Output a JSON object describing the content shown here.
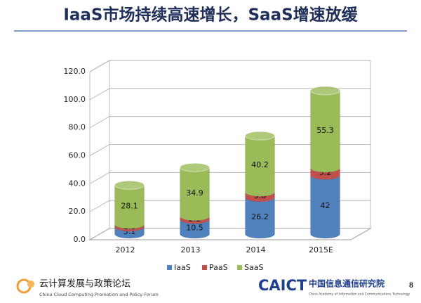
{
  "title": "IaaS市场持续高速增长，SaaS增速放缓",
  "chart_data": {
    "type": "bar",
    "stacked": true,
    "categories": [
      "2012",
      "2013",
      "2014",
      "2015E"
    ],
    "series": [
      {
        "name": "IaaS",
        "color": "#4f81bd",
        "values": [
          5.1,
          10.5,
          26.2,
          42
        ]
      },
      {
        "name": "PaaS",
        "color": "#c0504d",
        "values": [
          1.8,
          2.2,
          3.8,
          5.2
        ]
      },
      {
        "name": "SaaS",
        "color": "#9bbb59",
        "values": [
          28.1,
          34.9,
          40.2,
          55.3
        ]
      }
    ],
    "ylim": [
      0,
      120
    ],
    "yticks": [
      {
        "value": 0,
        "label": "0.0"
      },
      {
        "value": 20,
        "label": "20.0"
      },
      {
        "value": 40,
        "label": "40.0"
      },
      {
        "value": 60,
        "label": "60.0"
      },
      {
        "value": 80,
        "label": "80.0"
      },
      {
        "value": 100,
        "label": "100.0"
      },
      {
        "value": 120,
        "label": "120.0"
      }
    ],
    "grid": true,
    "legend": "bottom"
  },
  "footer": {
    "left_title": "云计算发展与政策论坛",
    "left_subtitle": "China Cloud Computing Promotion and Policy Forum",
    "right_logo": "CAICT",
    "right_title": "中国信息通信研究院",
    "right_subtitle": "China Academy of Information and Communications Technology",
    "page": "8"
  }
}
